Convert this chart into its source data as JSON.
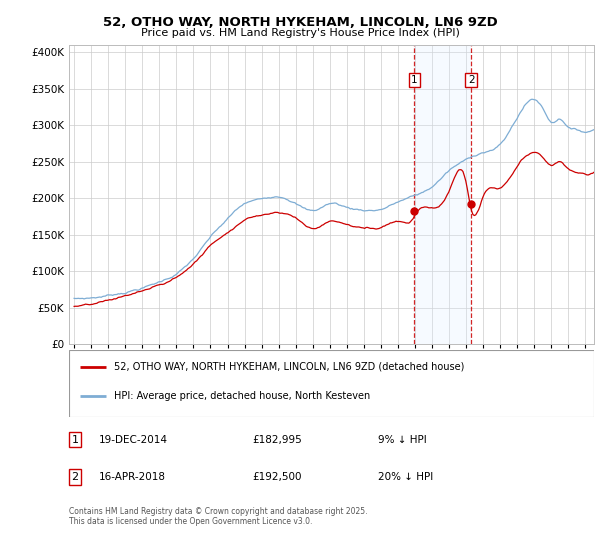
{
  "title": "52, OTHO WAY, NORTH HYKEHAM, LINCOLN, LN6 9ZD",
  "subtitle": "Price paid vs. HM Land Registry's House Price Index (HPI)",
  "legend_line1": "52, OTHO WAY, NORTH HYKEHAM, LINCOLN, LN6 9ZD (detached house)",
  "legend_line2": "HPI: Average price, detached house, North Kesteven",
  "annotation1": [
    "1",
    "19-DEC-2014",
    "£182,995",
    "9% ↓ HPI"
  ],
  "annotation2": [
    "2",
    "16-APR-2018",
    "£192,500",
    "20% ↓ HPI"
  ],
  "footer": "Contains HM Land Registry data © Crown copyright and database right 2025.\nThis data is licensed under the Open Government Licence v3.0.",
  "purchase1_year": 2014.958,
  "purchase2_year": 2018.29,
  "purchase1_value": 182995,
  "purchase2_value": 192500,
  "background_color": "#ffffff",
  "plot_bg_color": "#ffffff",
  "grid_color": "#cccccc",
  "red_line_color": "#cc0000",
  "blue_line_color": "#7eadd4",
  "shaded_region_color": "#ddeeff",
  "dashed_line_color": "#cc0000",
  "ylim": [
    0,
    410000
  ],
  "yticks": [
    0,
    50000,
    100000,
    150000,
    200000,
    250000,
    300000,
    350000,
    400000
  ],
  "xlim_start": 1994.7,
  "xlim_end": 2025.5
}
